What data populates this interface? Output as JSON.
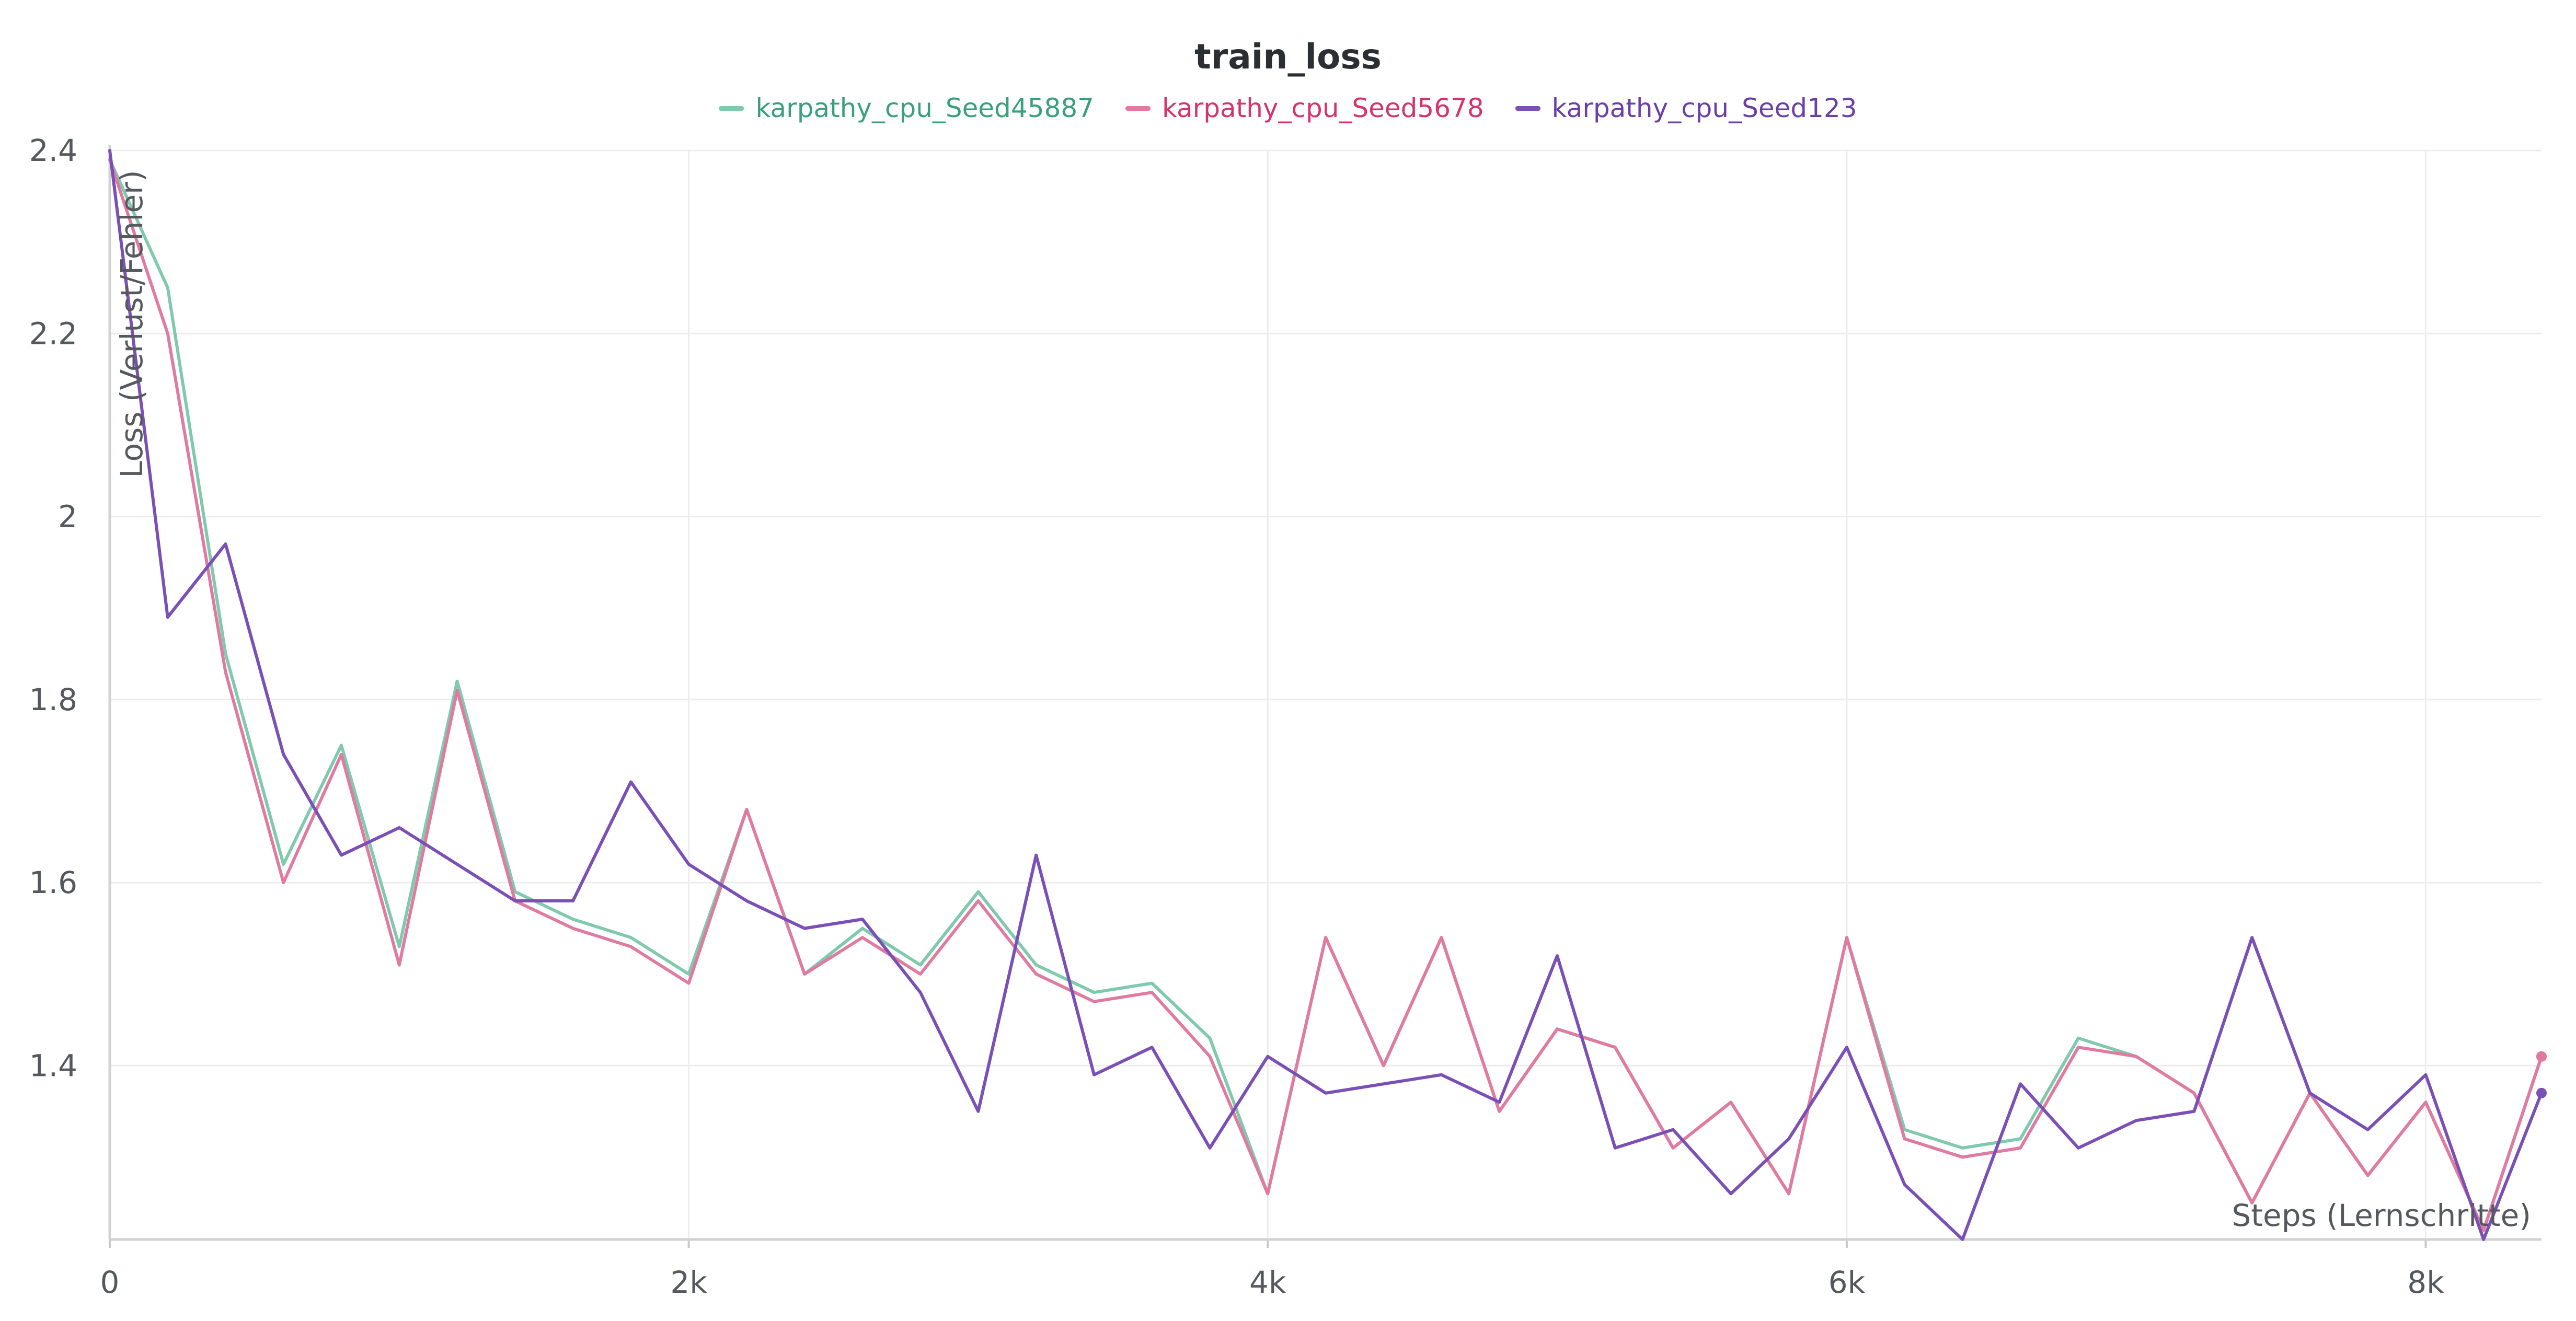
{
  "chart_data": {
    "type": "line",
    "title": "train_loss",
    "xlabel": "Steps (Lernschritte)",
    "ylabel": "Loss (Verlust/Fehler)",
    "xlim": [
      0,
      8400
    ],
    "ylim": [
      1.21,
      2.4
    ],
    "x_ticks": [
      0,
      2000,
      4000,
      6000,
      8000
    ],
    "x_tick_labels": [
      "0",
      "2k",
      "4k",
      "6k",
      "8k"
    ],
    "y_ticks": [
      1.4,
      1.6,
      1.8,
      2.0,
      2.2,
      2.4
    ],
    "y_tick_labels": [
      "1.4",
      "1.6",
      "1.8",
      "2",
      "2.2",
      "2.4"
    ],
    "grid": true,
    "legend_position": "top-center",
    "x": [
      0,
      200,
      400,
      600,
      800,
      1000,
      1200,
      1400,
      1600,
      1800,
      2000,
      2200,
      2400,
      2600,
      2800,
      3000,
      3200,
      3400,
      3600,
      3800,
      4000,
      4200,
      4400,
      4600,
      4800,
      5000,
      5200,
      5400,
      5600,
      5800,
      6000,
      6200,
      6400,
      6600,
      6800,
      7000,
      7200,
      7400,
      7600,
      7800,
      8000,
      8200,
      8400
    ],
    "series": [
      {
        "name": "karpathy_cpu_Seed45887",
        "color": "#7fc9ad",
        "label_color": "#3a9f7c",
        "values": [
          2.39,
          2.25,
          1.85,
          1.62,
          1.75,
          1.53,
          1.82,
          1.59,
          1.56,
          1.54,
          1.5,
          1.68,
          1.5,
          1.55,
          1.51,
          1.59,
          1.51,
          1.48,
          1.49,
          1.43,
          1.26,
          1.54,
          1.4,
          1.54,
          1.35,
          1.44,
          1.42,
          1.31,
          1.36,
          1.26,
          1.54,
          1.33,
          1.31,
          1.32,
          1.43,
          1.41,
          1.37,
          1.25,
          1.37,
          1.28,
          1.36,
          1.22,
          1.41
        ]
      },
      {
        "name": "karpathy_cpu_Seed5678",
        "color": "#e07aa0",
        "label_color": "#d6336c",
        "values": [
          2.39,
          2.2,
          1.83,
          1.6,
          1.74,
          1.51,
          1.81,
          1.58,
          1.55,
          1.53,
          1.49,
          1.68,
          1.5,
          1.54,
          1.5,
          1.58,
          1.5,
          1.47,
          1.48,
          1.41,
          1.26,
          1.54,
          1.4,
          1.54,
          1.35,
          1.44,
          1.42,
          1.31,
          1.36,
          1.26,
          1.54,
          1.32,
          1.3,
          1.31,
          1.42,
          1.41,
          1.37,
          1.25,
          1.37,
          1.28,
          1.36,
          1.22,
          1.41
        ]
      },
      {
        "name": "karpathy_cpu_Seed123",
        "color": "#7a4fb6",
        "label_color": "#6a3fa6",
        "values": [
          2.4,
          1.89,
          1.97,
          1.74,
          1.63,
          1.66,
          1.62,
          1.58,
          1.58,
          1.71,
          1.62,
          1.58,
          1.55,
          1.56,
          1.48,
          1.35,
          1.63,
          1.39,
          1.42,
          1.31,
          1.41,
          1.37,
          1.38,
          1.39,
          1.36,
          1.52,
          1.31,
          1.33,
          1.26,
          1.32,
          1.42,
          1.27,
          1.21,
          1.38,
          1.31,
          1.34,
          1.35,
          1.54,
          1.37,
          1.33,
          1.39,
          1.21,
          1.37
        ]
      }
    ]
  }
}
